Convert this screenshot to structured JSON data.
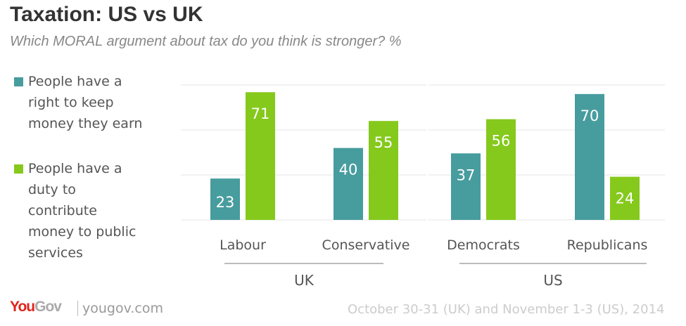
{
  "chart_data": {
    "type": "bar",
    "title": "Taxation: US vs UK",
    "subtitle": "Which MORAL argument about tax do you think is stronger? %",
    "categories": [
      "Labour",
      "Conservative",
      "Democrats",
      "Republicans"
    ],
    "groups": [
      {
        "label": "UK",
        "categories": [
          "Labour",
          "Conservative"
        ]
      },
      {
        "label": "US",
        "categories": [
          "Democrats",
          "Republicans"
        ]
      }
    ],
    "series": [
      {
        "name": "People have a right to keep money they earn",
        "color": "#479c9e",
        "values": [
          23,
          40,
          37,
          70
        ]
      },
      {
        "name": "People have a duty to contribute money to public services",
        "color": "#85c91c",
        "values": [
          71,
          55,
          56,
          24
        ]
      }
    ],
    "ylim": [
      0,
      75
    ],
    "gridlines": [
      25,
      50,
      75
    ],
    "legend": "left"
  },
  "legend_lines": [
    [
      "People have a",
      "right to keep",
      "money they earn"
    ],
    [
      "People have a",
      "duty to",
      "contribute",
      "money to public",
      "services"
    ]
  ],
  "footer": {
    "logo": "YouGov",
    "site": "yougov.com",
    "date": "October 30-31 (UK) and November 1-3 (US), 2014"
  }
}
